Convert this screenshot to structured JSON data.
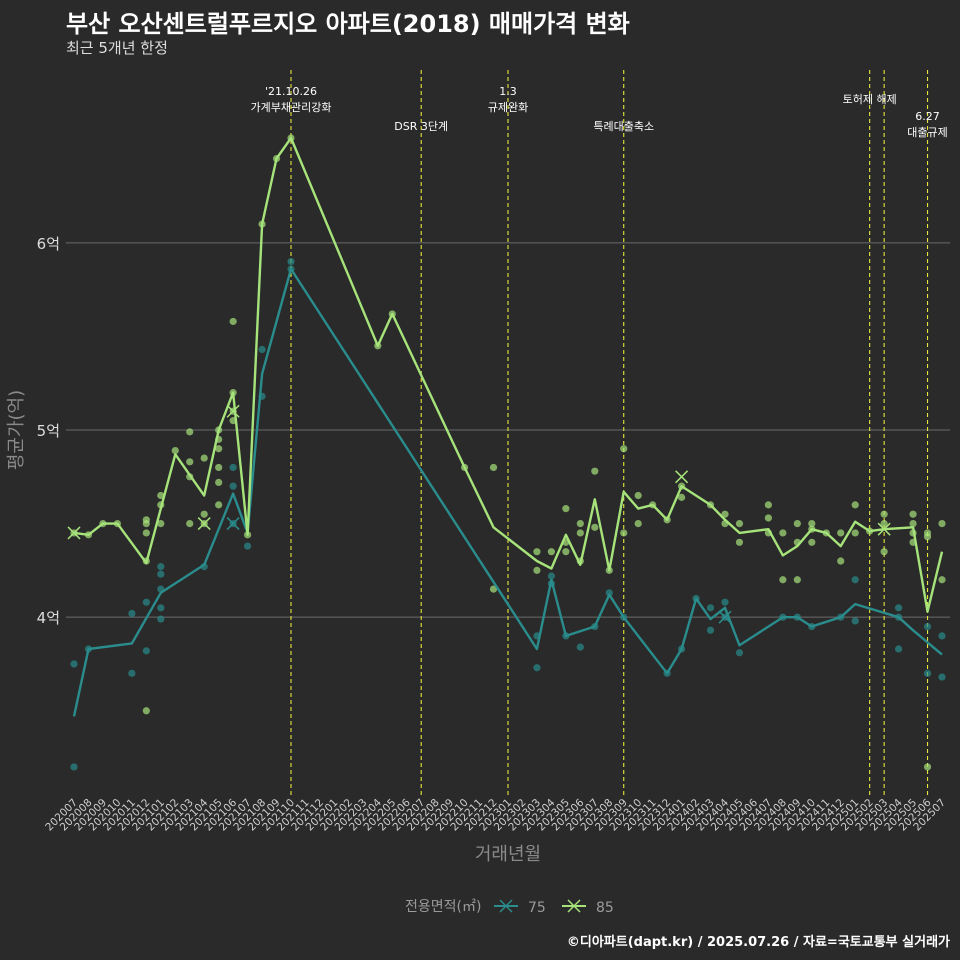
{
  "title": "부산 오산센트럴푸르지오 아파트(2018) 매매가격 변화",
  "subtitle": "최근 5개년 한정",
  "caption": "©디아파트(dapt.kr) / 2025.07.26 / 자료=국토교통부 실거래가",
  "chart_data": {
    "type": "line",
    "xlabel": "거래년월",
    "ylabel": "평균가(억)",
    "y_unit": "억",
    "ylim": [
      3.05,
      6.95
    ],
    "yticks": [
      4,
      5,
      6
    ],
    "ytick_labels": [
      "4억",
      "5억",
      "6억"
    ],
    "grid": "horizontal",
    "categories": [
      "202007",
      "202008",
      "202009",
      "202010",
      "202011",
      "202012",
      "202101",
      "202102",
      "202103",
      "202104",
      "202105",
      "202106",
      "202107",
      "202108",
      "202109",
      "202110",
      "202111",
      "202112",
      "202201",
      "202202",
      "202203",
      "202204",
      "202205",
      "202206",
      "202207",
      "202208",
      "202209",
      "202210",
      "202211",
      "202212",
      "202301",
      "202302",
      "202303",
      "202304",
      "202305",
      "202306",
      "202307",
      "202308",
      "202309",
      "202310",
      "202311",
      "202312",
      "202401",
      "202402",
      "202403",
      "202404",
      "202405",
      "202406",
      "202407",
      "202408",
      "202409",
      "202410",
      "202411",
      "202412",
      "202501",
      "202502",
      "202503",
      "202504",
      "202505",
      "202506",
      "202507"
    ],
    "legend": {
      "title": "전용면적(㎡)",
      "position": "bottom"
    },
    "series": [
      {
        "name": "75",
        "color": "#2a8c8c",
        "points": [
          [
            "202007",
            3.47
          ],
          [
            "202008",
            3.83
          ],
          [
            "202011",
            3.86
          ],
          [
            "202101",
            4.13
          ],
          [
            "202104",
            4.28
          ],
          [
            "202106",
            4.66
          ],
          [
            "202107",
            4.45
          ],
          [
            "202108",
            5.3
          ],
          [
            "202110",
            5.86
          ],
          [
            "202303",
            3.83
          ],
          [
            "202304",
            4.2
          ],
          [
            "202305",
            3.9
          ],
          [
            "202307",
            3.95
          ],
          [
            "202308",
            4.12
          ],
          [
            "202309",
            4.0
          ],
          [
            "202312",
            3.7
          ],
          [
            "202401",
            3.83
          ],
          [
            "202402",
            4.1
          ],
          [
            "202403",
            3.99
          ],
          [
            "202404",
            4.05
          ],
          [
            "202405",
            3.85
          ],
          [
            "202408",
            4.0
          ],
          [
            "202409",
            4.0
          ],
          [
            "202410",
            3.95
          ],
          [
            "202412",
            4.0
          ],
          [
            "202501",
            4.07
          ],
          [
            "202504",
            4.0
          ],
          [
            "202505",
            3.93
          ],
          [
            "202507",
            3.8
          ]
        ],
        "scatter": [
          [
            "202007",
            3.75
          ],
          [
            "202007",
            3.2
          ],
          [
            "202008",
            3.83
          ],
          [
            "202011",
            4.02
          ],
          [
            "202011",
            3.7
          ],
          [
            "202012",
            4.08
          ],
          [
            "202012",
            3.82
          ],
          [
            "202101",
            4.27
          ],
          [
            "202101",
            4.23
          ],
          [
            "202101",
            4.15
          ],
          [
            "202101",
            4.05
          ],
          [
            "202101",
            3.99
          ],
          [
            "202104",
            4.27
          ],
          [
            "202106",
            4.8
          ],
          [
            "202106",
            4.7
          ],
          [
            "202106",
            4.5
          ],
          [
            "202107",
            4.38
          ],
          [
            "202108",
            5.18
          ],
          [
            "202108",
            5.43
          ],
          [
            "202110",
            5.9
          ],
          [
            "202110",
            5.86
          ],
          [
            "202303",
            3.9
          ],
          [
            "202303",
            3.73
          ],
          [
            "202304",
            4.22
          ],
          [
            "202304",
            4.18
          ],
          [
            "202305",
            3.9
          ],
          [
            "202306",
            3.84
          ],
          [
            "202307",
            3.95
          ],
          [
            "202308",
            4.13
          ],
          [
            "202309",
            4.0
          ],
          [
            "202312",
            3.7
          ],
          [
            "202401",
            3.83
          ],
          [
            "202402",
            4.1
          ],
          [
            "202403",
            4.05
          ],
          [
            "202403",
            3.93
          ],
          [
            "202404",
            4.08
          ],
          [
            "202404",
            4.0
          ],
          [
            "202405",
            3.81
          ],
          [
            "202408",
            4.0
          ],
          [
            "202409",
            4.0
          ],
          [
            "202410",
            3.95
          ],
          [
            "202412",
            4.0
          ],
          [
            "202501",
            4.2
          ],
          [
            "202501",
            3.98
          ],
          [
            "202504",
            4.05
          ],
          [
            "202504",
            4.0
          ],
          [
            "202504",
            3.83
          ],
          [
            "202506",
            3.95
          ],
          [
            "202506",
            3.7
          ],
          [
            "202507",
            3.9
          ],
          [
            "202507",
            3.68
          ]
        ],
        "cancelled": [
          [
            "202106",
            4.5
          ],
          [
            "202404",
            4.0
          ]
        ]
      },
      {
        "name": "85",
        "color": "#a6e37a",
        "points": [
          [
            "202007",
            4.45
          ],
          [
            "202008",
            4.44
          ],
          [
            "202009",
            4.5
          ],
          [
            "202010",
            4.5
          ],
          [
            "202012",
            4.29
          ],
          [
            "202102",
            4.87
          ],
          [
            "202103",
            4.76
          ],
          [
            "202104",
            4.65
          ],
          [
            "202105",
            5.0
          ],
          [
            "202106",
            5.2
          ],
          [
            "202107",
            4.44
          ],
          [
            "202108",
            6.1
          ],
          [
            "202109",
            6.45
          ],
          [
            "202110",
            6.56
          ],
          [
            "202204",
            5.45
          ],
          [
            "202205",
            5.62
          ],
          [
            "202210",
            4.8
          ],
          [
            "202212",
            4.48
          ],
          [
            "202303",
            4.3
          ],
          [
            "202304",
            4.26
          ],
          [
            "202305",
            4.44
          ],
          [
            "202306",
            4.28
          ],
          [
            "202307",
            4.63
          ],
          [
            "202308",
            4.25
          ],
          [
            "202309",
            4.67
          ],
          [
            "202310",
            4.58
          ],
          [
            "202311",
            4.6
          ],
          [
            "202312",
            4.52
          ],
          [
            "202401",
            4.7
          ],
          [
            "202403",
            4.6
          ],
          [
            "202404",
            4.52
          ],
          [
            "202405",
            4.45
          ],
          [
            "202407",
            4.47
          ],
          [
            "202408",
            4.33
          ],
          [
            "202409",
            4.38
          ],
          [
            "202410",
            4.47
          ],
          [
            "202411",
            4.45
          ],
          [
            "202412",
            4.38
          ],
          [
            "202501",
            4.51
          ],
          [
            "202502",
            4.46
          ],
          [
            "202503",
            4.47
          ],
          [
            "202505",
            4.48
          ],
          [
            "202506",
            4.03
          ],
          [
            "202507",
            4.35
          ]
        ],
        "scatter": [
          [
            "202007",
            4.45
          ],
          [
            "202008",
            4.44
          ],
          [
            "202009",
            4.5
          ],
          [
            "202010",
            4.5
          ],
          [
            "202012",
            4.52
          ],
          [
            "202012",
            4.5
          ],
          [
            "202012",
            4.45
          ],
          [
            "202012",
            4.3
          ],
          [
            "202012",
            3.5
          ],
          [
            "202101",
            4.65
          ],
          [
            "202101",
            4.6
          ],
          [
            "202101",
            4.5
          ],
          [
            "202102",
            4.89
          ],
          [
            "202103",
            4.99
          ],
          [
            "202103",
            4.83
          ],
          [
            "202103",
            4.75
          ],
          [
            "202103",
            4.5
          ],
          [
            "202104",
            4.85
          ],
          [
            "202104",
            4.55
          ],
          [
            "202104",
            4.5
          ],
          [
            "202105",
            5.0
          ],
          [
            "202105",
            4.95
          ],
          [
            "202105",
            4.9
          ],
          [
            "202105",
            4.8
          ],
          [
            "202105",
            4.72
          ],
          [
            "202105",
            4.6
          ],
          [
            "202106",
            5.58
          ],
          [
            "202106",
            5.2
          ],
          [
            "202106",
            5.1
          ],
          [
            "202106",
            5.05
          ],
          [
            "202107",
            4.44
          ],
          [
            "202108",
            6.1
          ],
          [
            "202109",
            6.45
          ],
          [
            "202110",
            6.56
          ],
          [
            "202204",
            5.45
          ],
          [
            "202205",
            5.62
          ],
          [
            "202210",
            4.8
          ],
          [
            "202212",
            4.8
          ],
          [
            "202212",
            4.15
          ],
          [
            "202303",
            4.35
          ],
          [
            "202303",
            4.25
          ],
          [
            "202304",
            4.35
          ],
          [
            "202305",
            4.58
          ],
          [
            "202305",
            4.4
          ],
          [
            "202305",
            4.35
          ],
          [
            "202306",
            4.5
          ],
          [
            "202306",
            4.45
          ],
          [
            "202306",
            4.3
          ],
          [
            "202307",
            4.78
          ],
          [
            "202307",
            4.48
          ],
          [
            "202308",
            4.25
          ],
          [
            "202309",
            4.9
          ],
          [
            "202309",
            4.45
          ],
          [
            "202310",
            4.65
          ],
          [
            "202310",
            4.5
          ],
          [
            "202311",
            4.6
          ],
          [
            "202312",
            4.52
          ],
          [
            "202401",
            4.7
          ],
          [
            "202401",
            4.64
          ],
          [
            "202403",
            4.6
          ],
          [
            "202404",
            4.55
          ],
          [
            "202404",
            4.5
          ],
          [
            "202405",
            4.5
          ],
          [
            "202405",
            4.4
          ],
          [
            "202407",
            4.6
          ],
          [
            "202407",
            4.53
          ],
          [
            "202407",
            4.45
          ],
          [
            "202408",
            4.45
          ],
          [
            "202408",
            4.2
          ],
          [
            "202409",
            4.5
          ],
          [
            "202409",
            4.4
          ],
          [
            "202409",
            4.2
          ],
          [
            "202410",
            4.5
          ],
          [
            "202410",
            4.47
          ],
          [
            "202410",
            4.4
          ],
          [
            "202411",
            4.45
          ],
          [
            "202412",
            4.45
          ],
          [
            "202412",
            4.3
          ],
          [
            "202501",
            4.6
          ],
          [
            "202501",
            4.45
          ],
          [
            "202502",
            4.46
          ],
          [
            "202503",
            4.55
          ],
          [
            "202503",
            4.5
          ],
          [
            "202503",
            4.35
          ],
          [
            "202505",
            4.55
          ],
          [
            "202505",
            4.5
          ],
          [
            "202505",
            4.45
          ],
          [
            "202505",
            4.4
          ],
          [
            "202506",
            4.45
          ],
          [
            "202506",
            4.43
          ],
          [
            "202506",
            3.2
          ],
          [
            "202507",
            4.5
          ],
          [
            "202507",
            4.2
          ]
        ],
        "cancelled": [
          [
            "202007",
            4.45
          ],
          [
            "202104",
            4.5
          ],
          [
            "202106",
            5.1
          ],
          [
            "202401",
            4.75
          ],
          [
            "202503",
            4.47
          ]
        ]
      }
    ],
    "annotations": [
      {
        "x": "202110",
        "text": "'21.10.26\n가계부채관리강화",
        "row": "top"
      },
      {
        "x": "202207",
        "text": "DSR 3단계",
        "row": "low"
      },
      {
        "x": "202301",
        "text": "1.3\n규제완화",
        "row": "top"
      },
      {
        "x": "202309",
        "text": "특례대출축소",
        "row": "low"
      },
      {
        "x": "202502",
        "text": "토허제 해제",
        "row": "mid"
      },
      {
        "x": "202503",
        "text": "",
        "row": "mid"
      },
      {
        "x": "202506",
        "text": "6.27\n대출규제",
        "row": "right"
      }
    ]
  }
}
